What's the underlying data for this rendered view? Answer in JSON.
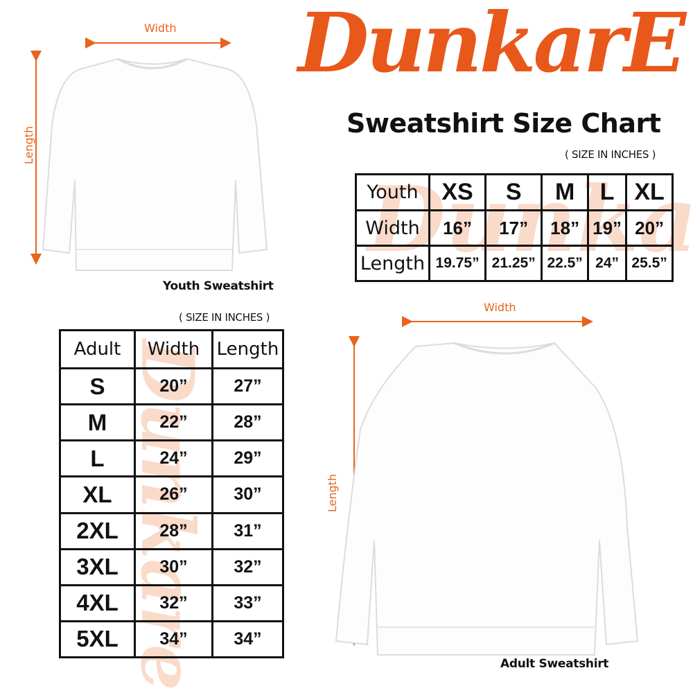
{
  "brand": {
    "logo_text": "DunkarE",
    "color": "#e8581a"
  },
  "title": "Sweatshirt Size Chart",
  "youth": {
    "caption": "Youth Sweatshirt",
    "width_label": "Width",
    "length_label": "Length",
    "units_note": "( SIZE IN INCHES )",
    "table": {
      "header": [
        "Youth",
        "XS",
        "S",
        "M",
        "L",
        "XL"
      ],
      "rows": [
        [
          "Width",
          "16”",
          "17”",
          "18”",
          "19”",
          "20”"
        ],
        [
          "Length",
          "19.75”",
          "21.25”",
          "22.5”",
          "24”",
          "25.5”"
        ]
      ]
    }
  },
  "adult": {
    "caption": "Adult Sweatshirt",
    "width_label": "Width",
    "length_label": "Length",
    "units_note": "( SIZE IN INCHES )",
    "table": {
      "header": [
        "Adult",
        "Width",
        "Length"
      ],
      "rows": [
        [
          "S",
          "20”",
          "27”"
        ],
        [
          "M",
          "22”",
          "28”"
        ],
        [
          "L",
          "24”",
          "29”"
        ],
        [
          "XL",
          "26”",
          "30”"
        ],
        [
          "2XL",
          "28”",
          "31”"
        ],
        [
          "3XL",
          "30”",
          "32”"
        ],
        [
          "4XL",
          "32”",
          "33”"
        ],
        [
          "5XL",
          "34”",
          "34”"
        ]
      ]
    }
  },
  "colors": {
    "accent": "#e8631c",
    "watermark": "#f5c3a3"
  }
}
